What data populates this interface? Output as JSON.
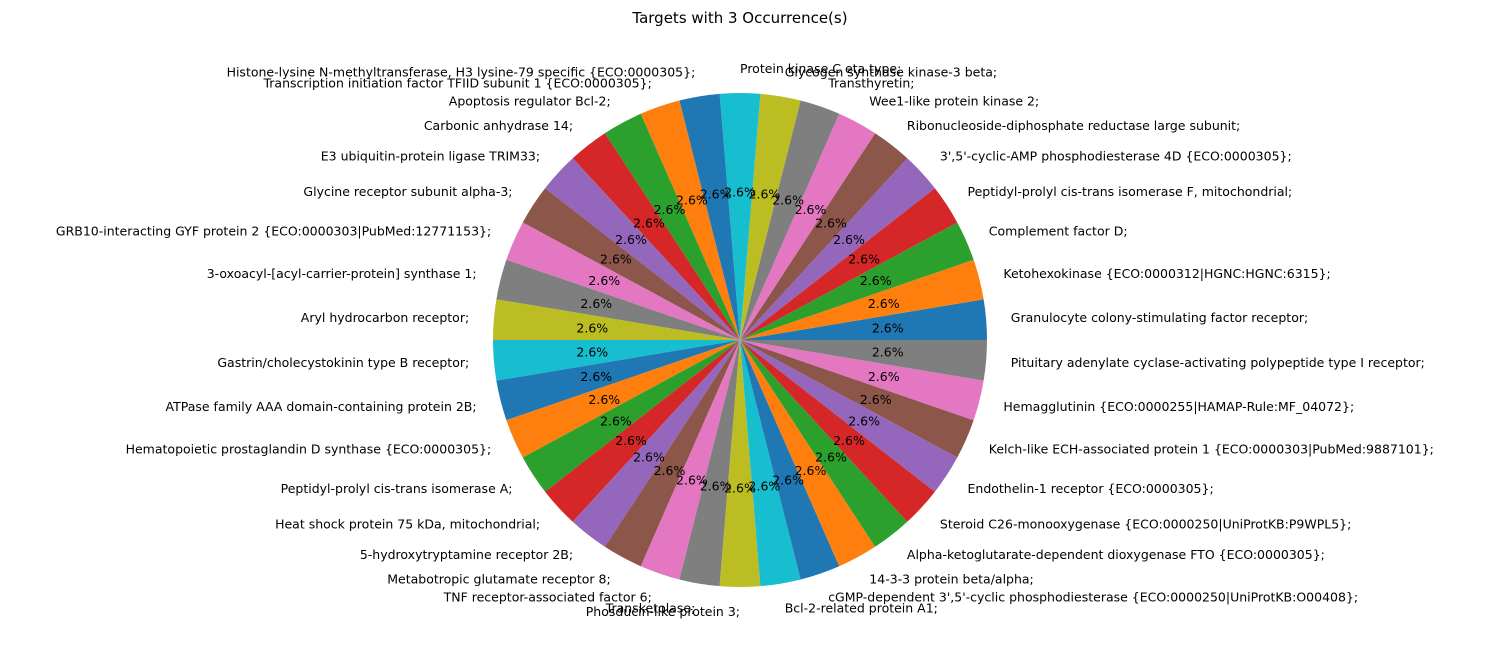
{
  "chart_data": {
    "type": "pie",
    "title": "Targets with 3 Occurrence(s)",
    "start_angle_deg": 0,
    "direction": "counterclockwise",
    "colors": [
      "#1f77b4",
      "#ff7f0e",
      "#2ca02c",
      "#d62728",
      "#9467bd",
      "#8c564b",
      "#e377c2",
      "#7f7f7f",
      "#bcbd22",
      "#17becf"
    ],
    "slices": [
      {
        "label": "Granulocyte colony-stimulating factor receptor;",
        "value": 3,
        "pct_label": "2.6%"
      },
      {
        "label": "Ketohexokinase {ECO:0000312|HGNC:HGNC:6315};",
        "value": 3,
        "pct_label": "2.6%"
      },
      {
        "label": "Complement factor D;",
        "value": 3,
        "pct_label": "2.6%"
      },
      {
        "label": "Peptidyl-prolyl cis-trans isomerase F, mitochondrial;",
        "value": 3,
        "pct_label": "2.6%"
      },
      {
        "label": "3',5'-cyclic-AMP phosphodiesterase 4D {ECO:0000305};",
        "value": 3,
        "pct_label": "2.6%"
      },
      {
        "label": "Ribonucleoside-diphosphate reductase large subunit;",
        "value": 3,
        "pct_label": "2.6%"
      },
      {
        "label": "Wee1-like protein kinase 2;",
        "value": 3,
        "pct_label": "2.6%"
      },
      {
        "label": "Transthyretin;",
        "value": 3,
        "pct_label": "2.6%"
      },
      {
        "label": "Glycogen synthase kinase-3 beta;",
        "value": 3,
        "pct_label": "2.6%"
      },
      {
        "label": "Protein kinase C eta type;",
        "value": 3,
        "pct_label": "2.6%"
      },
      {
        "label": "Histone-lysine N-methyltransferase, H3 lysine-79 specific {ECO:0000305};",
        "value": 3,
        "pct_label": "2.6%"
      },
      {
        "label": "Transcription initiation factor TFIID subunit 1 {ECO:0000305};",
        "value": 3,
        "pct_label": "2.6%"
      },
      {
        "label": "Apoptosis regulator Bcl-2;",
        "value": 3,
        "pct_label": "2.6%"
      },
      {
        "label": "Carbonic anhydrase 14;",
        "value": 3,
        "pct_label": "2.6%"
      },
      {
        "label": "E3 ubiquitin-protein ligase TRIM33;",
        "value": 3,
        "pct_label": "2.6%"
      },
      {
        "label": "Glycine receptor subunit alpha-3;",
        "value": 3,
        "pct_label": "2.6%"
      },
      {
        "label": "GRB10-interacting GYF protein 2 {ECO:0000303|PubMed:12771153};",
        "value": 3,
        "pct_label": "2.6%"
      },
      {
        "label": "3-oxoacyl-[acyl-carrier-protein] synthase 1;",
        "value": 3,
        "pct_label": "2.6%"
      },
      {
        "label": "Aryl hydrocarbon receptor;",
        "value": 3,
        "pct_label": "2.6%"
      },
      {
        "label": "Gastrin/cholecystokinin type B receptor;",
        "value": 3,
        "pct_label": "2.6%"
      },
      {
        "label": "ATPase family AAA domain-containing protein 2B;",
        "value": 3,
        "pct_label": "2.6%"
      },
      {
        "label": "Hematopoietic prostaglandin D synthase {ECO:0000305};",
        "value": 3,
        "pct_label": "2.6%"
      },
      {
        "label": "Peptidyl-prolyl cis-trans isomerase A;",
        "value": 3,
        "pct_label": "2.6%"
      },
      {
        "label": "Heat shock protein 75 kDa, mitochondrial;",
        "value": 3,
        "pct_label": "2.6%"
      },
      {
        "label": "5-hydroxytryptamine receptor 2B;",
        "value": 3,
        "pct_label": "2.6%"
      },
      {
        "label": "Metabotropic glutamate receptor 8;",
        "value": 3,
        "pct_label": "2.6%"
      },
      {
        "label": "TNF receptor-associated factor 6;",
        "value": 3,
        "pct_label": "2.6%"
      },
      {
        "label": "Transketolase;",
        "value": 3,
        "pct_label": "2.6%"
      },
      {
        "label": "Phosducin-like protein 3;",
        "value": 3,
        "pct_label": "2.6%"
      },
      {
        "label": "Bcl-2-related protein A1;",
        "value": 3,
        "pct_label": "2.6%"
      },
      {
        "label": "cGMP-dependent 3',5'-cyclic phosphodiesterase {ECO:0000250|UniProtKB:O00408};",
        "value": 3,
        "pct_label": "2.6%"
      },
      {
        "label": "14-3-3 protein beta/alpha;",
        "value": 3,
        "pct_label": "2.6%"
      },
      {
        "label": "Alpha-ketoglutarate-dependent dioxygenase FTO {ECO:0000305};",
        "value": 3,
        "pct_label": "2.6%"
      },
      {
        "label": "Steroid C26-monooxygenase {ECO:0000250|UniProtKB:P9WPL5};",
        "value": 3,
        "pct_label": "2.6%"
      },
      {
        "label": "Endothelin-1 receptor {ECO:0000305};",
        "value": 3,
        "pct_label": "2.6%"
      },
      {
        "label": "Kelch-like ECH-associated protein 1 {ECO:0000303|PubMed:9887101};",
        "value": 3,
        "pct_label": "2.6%"
      },
      {
        "label": "Hemagglutinin {ECO:0000255|HAMAP-Rule:MF_04072};",
        "value": 3,
        "pct_label": "2.6%"
      },
      {
        "label": "Pituitary adenylate cyclase-activating polypeptide type I receptor;",
        "value": 3,
        "pct_label": "2.6%"
      }
    ]
  }
}
